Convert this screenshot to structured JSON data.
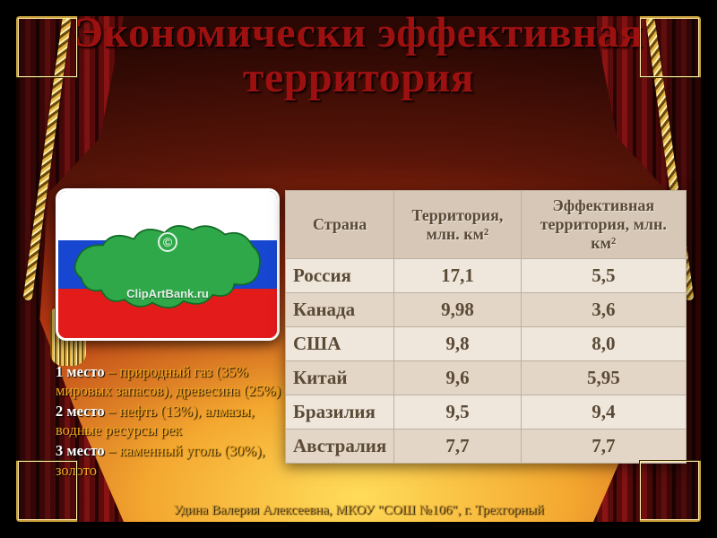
{
  "slide": {
    "title": "Экономически эффективная территория",
    "title_color": "#9d1010",
    "title_fontsize": 48
  },
  "flag": {
    "stripe_colors": [
      "#ffffff",
      "#1746d1",
      "#e31b1b"
    ],
    "map_fill": "#2fa84a",
    "map_stroke": "#126b26",
    "watermark": "ClipArtBank.ru",
    "copyright_mark": "©"
  },
  "ranks": {
    "label_color": "#ffffff",
    "text_color": "#f3a81e",
    "items": [
      {
        "label": "1 место",
        "text": " – природный газ (35% мировых запасов), древесина (25%)"
      },
      {
        "label": "2 место",
        "text": " – нефть (13%), алмазы, водные ресурсы рек"
      },
      {
        "label": "3 место",
        "text": " – каменный уголь (30%), золото"
      }
    ]
  },
  "table": {
    "header_bg": "#d6c7b6",
    "header_color": "#5a4a36",
    "row_bg_alt": [
      "#efe7dc",
      "#e4d6c6"
    ],
    "cell_color": "#5a4a36",
    "columns": [
      "Страна",
      "Территория, млн. км²",
      "Эффективная территория, млн. км²"
    ],
    "rows": [
      [
        "Россия",
        "17,1",
        "5,5"
      ],
      [
        "Канада",
        "9,98",
        "3,6"
      ],
      [
        "США",
        "9,8",
        "8,0"
      ],
      [
        "Китай",
        "9,6",
        "5,95"
      ],
      [
        "Бразилия",
        "9,5",
        "9,4"
      ],
      [
        "Австралия",
        "7,7",
        "7,7"
      ]
    ]
  },
  "footer": {
    "text": "Удина Валерия Алексеевна, МКОУ \"СОШ №106\", г. Трехгорный",
    "color": "#c7942f"
  }
}
